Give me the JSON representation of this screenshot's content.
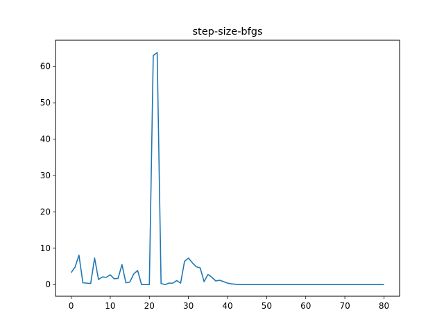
{
  "chart_data": {
    "type": "line",
    "title": "step-size-bfgs",
    "xlabel": "",
    "ylabel": "",
    "xlim": [
      -4,
      84
    ],
    "ylim": [
      -3.2,
      67.2
    ],
    "grid": false,
    "xticks": [
      0,
      10,
      20,
      30,
      40,
      50,
      60,
      70,
      80
    ],
    "yticks": [
      0,
      10,
      20,
      30,
      40,
      50,
      60
    ],
    "series_color": "#1f77b4",
    "series": [
      {
        "x": [
          0,
          1,
          2,
          3,
          4,
          5,
          6,
          7,
          8,
          9,
          10,
          11,
          12,
          13,
          14,
          15,
          16,
          17,
          18,
          19,
          20,
          21,
          22,
          23,
          24,
          25,
          26,
          27,
          28,
          29,
          30,
          31,
          32,
          33,
          34,
          35,
          36,
          37,
          38,
          39,
          40,
          41,
          42,
          43,
          44,
          45,
          46,
          47,
          48,
          49,
          50,
          51,
          52,
          53,
          54,
          55,
          56,
          57,
          58,
          59,
          60,
          61,
          62,
          63,
          64,
          65,
          66,
          67,
          68,
          69,
          70,
          71,
          72,
          73,
          74,
          75,
          76,
          77,
          78,
          79,
          80
        ],
        "y": [
          3.3,
          4.8,
          8.1,
          0.5,
          0.4,
          0.3,
          7.3,
          1.4,
          2.1,
          2.0,
          2.7,
          1.6,
          1.7,
          5.5,
          0.5,
          0.7,
          2.9,
          3.9,
          0.0,
          0.0,
          0.0,
          63.0,
          63.8,
          0.3,
          0.0,
          0.4,
          0.4,
          1.1,
          0.4,
          6.4,
          7.3,
          6.0,
          4.9,
          4.6,
          0.8,
          2.8,
          2.0,
          1.0,
          1.2,
          0.8,
          0.4,
          0.2,
          0.1,
          0.0,
          0.0,
          0.0,
          0.0,
          0.0,
          0.0,
          0.0,
          0.0,
          0.0,
          0.0,
          0.0,
          0.0,
          0.0,
          0.0,
          0.0,
          0.0,
          0.0,
          0.0,
          0.0,
          0.0,
          0.0,
          0.0,
          0.0,
          0.0,
          0.0,
          0.0,
          0.0,
          0.0,
          0.0,
          0.0,
          0.0,
          0.0,
          0.0,
          0.0,
          0.0,
          0.0,
          0.0,
          0.0
        ]
      }
    ]
  }
}
